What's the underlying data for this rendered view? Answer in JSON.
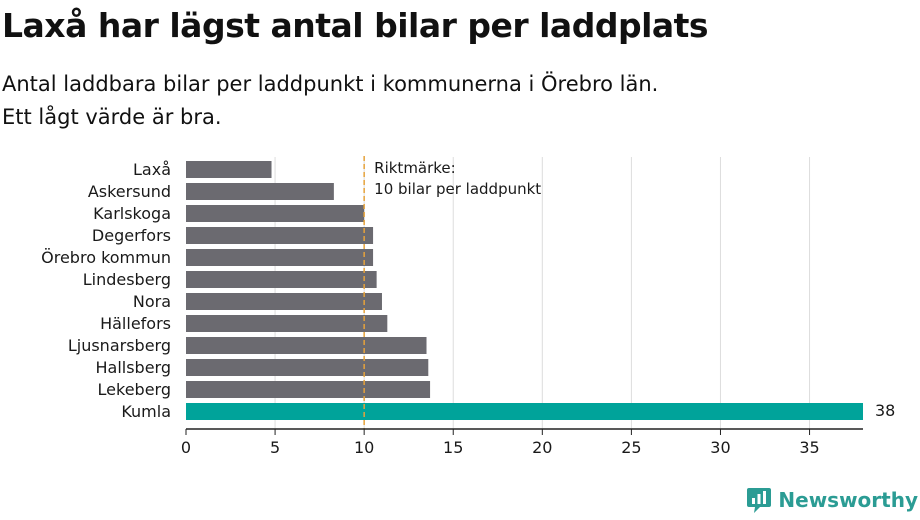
{
  "title": "Laxå har lägst antal bilar per laddplats",
  "subtitle_lines": [
    "Antal laddbara bilar per laddpunkt i kommunerna i Örebro län.",
    "Ett lågt värde är bra."
  ],
  "brand": {
    "name": "Newsworthy",
    "icon": "newsworthy-logo-icon"
  },
  "colors": {
    "bar": "#6b6a70",
    "highlight": "#00a39a",
    "grid": "#dddddd",
    "reference_line": "#e6a23c",
    "axis": "#222222",
    "text": "#1a1a1a"
  },
  "chart_data": {
    "type": "bar",
    "orientation": "horizontal",
    "categories": [
      "Laxå",
      "Askersund",
      "Karlskoga",
      "Degerfors",
      "Örebro kommun",
      "Lindesberg",
      "Nora",
      "Hällefors",
      "Ljusnarsberg",
      "Hallsberg",
      "Lekeberg",
      "Kumla"
    ],
    "values": [
      4.8,
      8.3,
      10.0,
      10.5,
      10.5,
      10.7,
      11.0,
      11.3,
      13.5,
      13.6,
      13.7,
      38
    ],
    "highlight_category": "Kumla",
    "data_labels": [
      {
        "category": "Kumla",
        "text": "38"
      }
    ],
    "xlim": [
      0,
      38
    ],
    "xticks": [
      0,
      5,
      10,
      15,
      20,
      25,
      30,
      35
    ],
    "grid": true,
    "reference_line": {
      "value": 10,
      "label_lines": [
        "Riktmärke:",
        "10 bilar per laddpunkt"
      ]
    }
  }
}
